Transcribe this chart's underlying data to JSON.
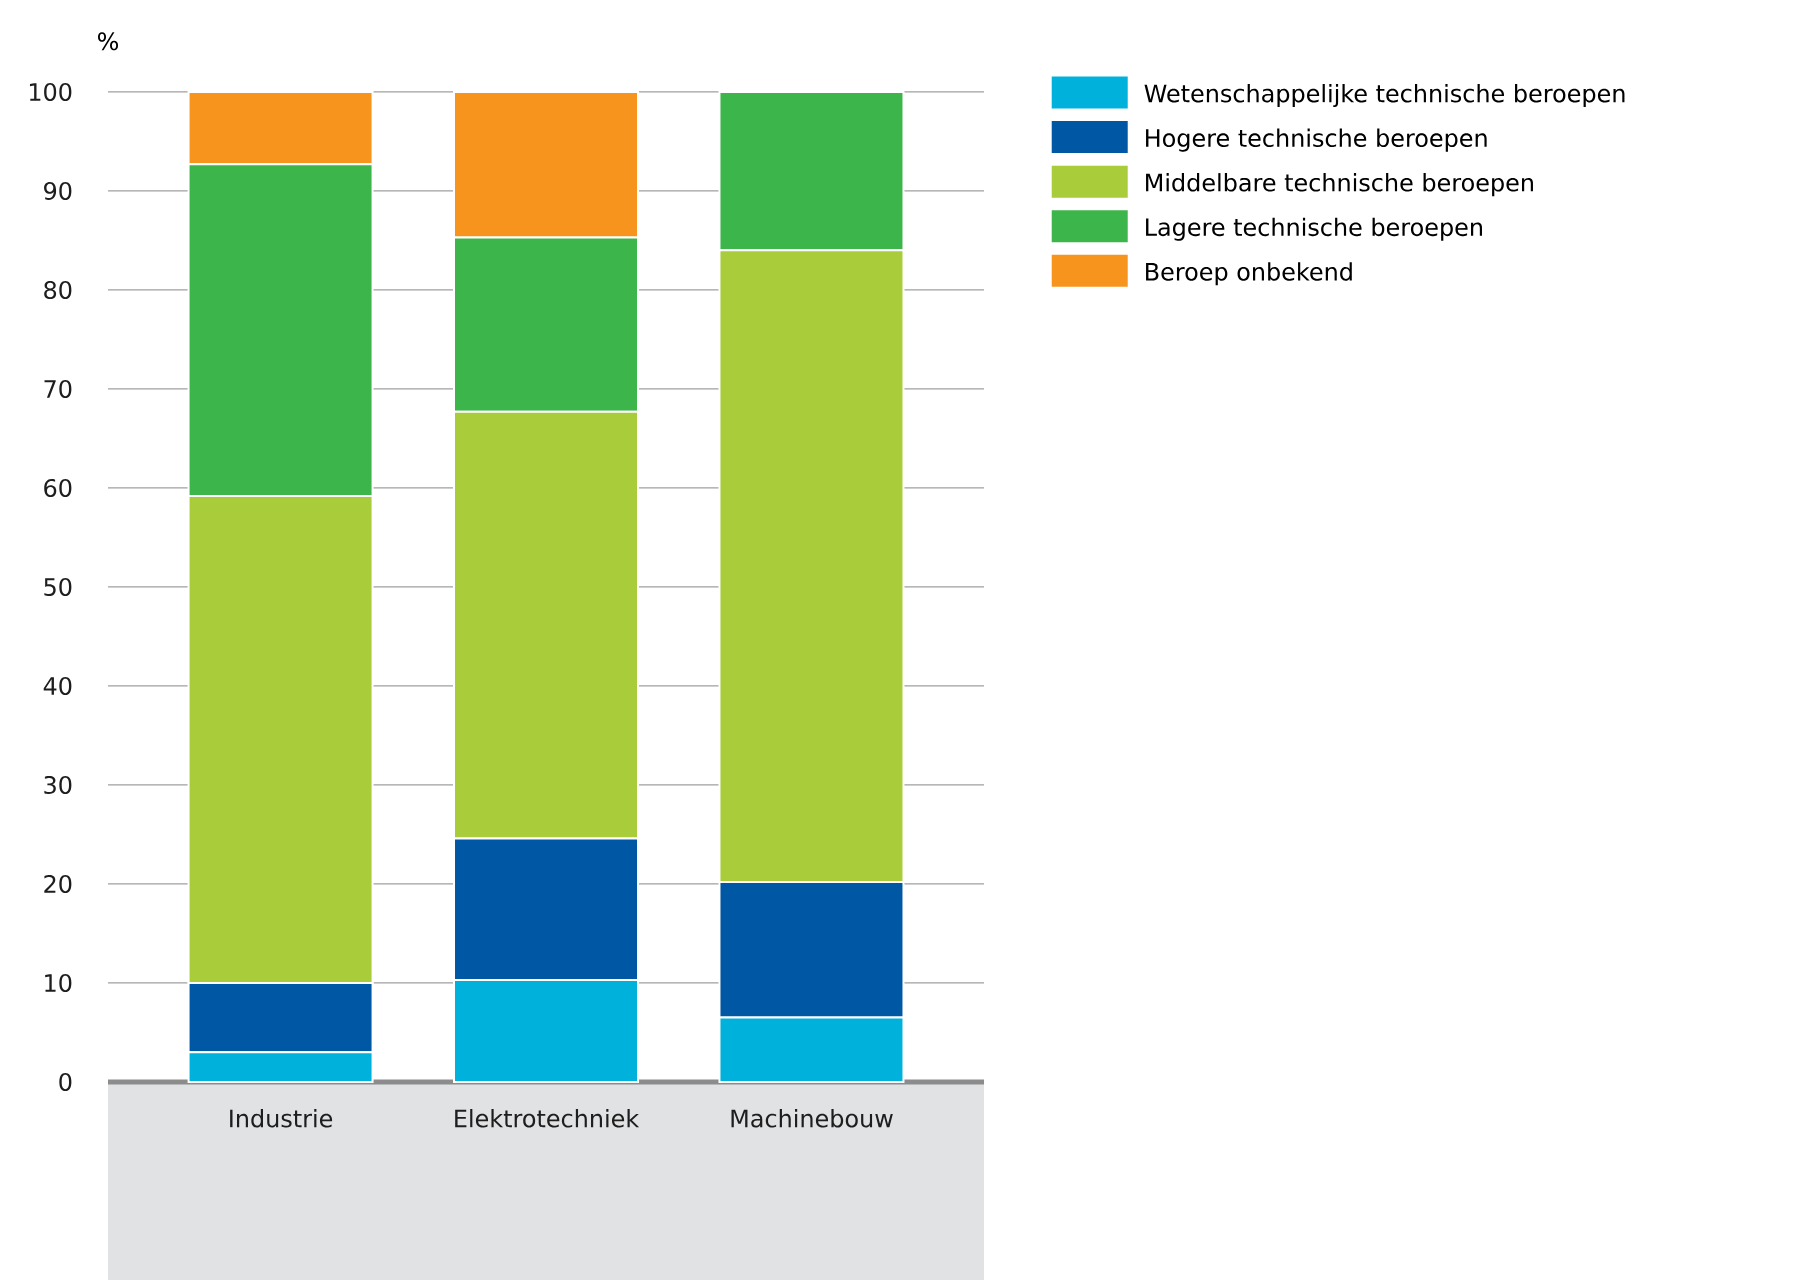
{
  "chart_data": {
    "type": "bar",
    "stacked": true,
    "ylabel": "%",
    "categories": [
      "Industrie",
      "Elektrotechniek",
      "Machinebouw"
    ],
    "series": [
      {
        "name": "Wetenschappelijke technische beroepen",
        "color": "#00b1dc",
        "values": [
          3.0,
          10.3,
          6.5
        ]
      },
      {
        "name": "Hogere technische beroepen",
        "color": "#0058a5",
        "values": [
          7.0,
          14.3,
          13.7
        ]
      },
      {
        "name": "Middelbare technische beroepen",
        "color": "#a9cc3a",
        "values": [
          49.2,
          43.1,
          63.8
        ]
      },
      {
        "name": "Lagere technische beroepen",
        "color": "#3cb54a",
        "values": [
          33.5,
          17.6,
          16.0
        ]
      },
      {
        "name": "Beroep onbekend",
        "color": "#f7941d",
        "values": [
          7.3,
          14.7,
          0
        ]
      }
    ],
    "ylim": [
      0,
      100
    ],
    "yticks": [
      0,
      10,
      20,
      30,
      40,
      50,
      60,
      70,
      80,
      90,
      100
    ],
    "grid": "y",
    "legend": "top right"
  }
}
